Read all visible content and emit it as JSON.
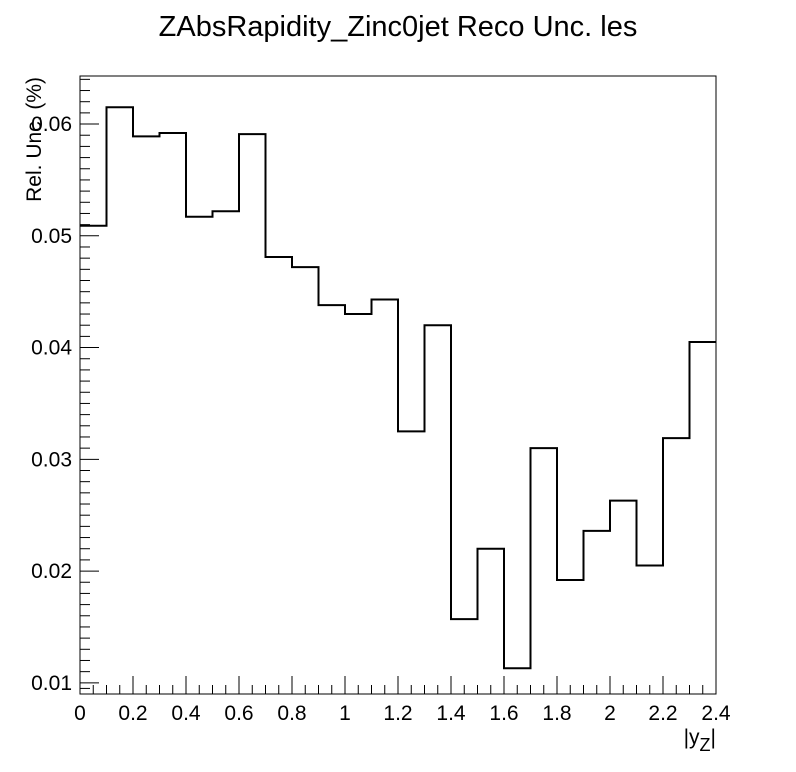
{
  "chart_data": {
    "type": "step-histogram",
    "title": "ZAbsRapidity_Zinc0jet Reco Unc. les",
    "xlabel": "|y_{Z}|",
    "ylabel": "Rel. Unc. (%)",
    "xlim": [
      0,
      2.4
    ],
    "ylim": [
      0.009,
      0.0643
    ],
    "bin_edges": [
      0,
      0.1,
      0.2,
      0.3,
      0.4,
      0.5,
      0.6,
      0.7,
      0.8,
      0.9,
      1.0,
      1.1,
      1.2,
      1.3,
      1.4,
      1.5,
      1.6,
      1.7,
      1.8,
      1.9,
      2.0,
      2.1,
      2.2,
      2.3,
      2.4
    ],
    "values": [
      0.0509,
      0.0615,
      0.0589,
      0.0592,
      0.0517,
      0.0522,
      0.0591,
      0.0481,
      0.0472,
      0.0438,
      0.043,
      0.0443,
      0.0325,
      0.042,
      0.0157,
      0.022,
      0.0113,
      0.031,
      0.0192,
      0.0236,
      0.0263,
      0.0205,
      0.0319,
      0.0405
    ],
    "x_ticks": [
      0,
      0.2,
      0.4,
      0.6,
      0.8,
      1.0,
      1.2,
      1.4,
      1.6,
      1.8,
      2.0,
      2.2,
      2.4
    ],
    "x_tick_labels": [
      "0",
      "0.2",
      "0.4",
      "0.6",
      "0.8",
      "1",
      "1.2",
      "1.4",
      "1.6",
      "1.8",
      "2",
      "2.2",
      "2.4"
    ],
    "y_ticks": [
      0.01,
      0.02,
      0.03,
      0.04,
      0.05,
      0.06
    ],
    "y_tick_labels": [
      "0.01",
      "0.02",
      "0.03",
      "0.04",
      "0.05",
      "0.06"
    ],
    "grid": false,
    "legend": "none",
    "line_color": "#000000"
  }
}
